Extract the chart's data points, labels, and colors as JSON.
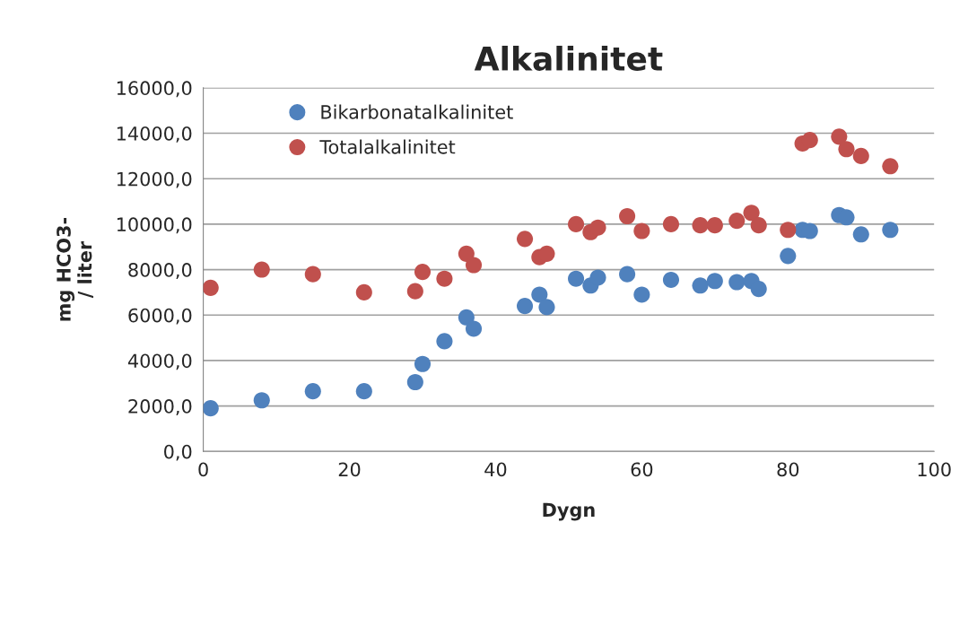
{
  "chart_data": {
    "type": "scatter",
    "title": "Alkalinitet",
    "xlabel": "Dygn",
    "ylabel": "mg HCO3-\n/ liter",
    "xlim": [
      0,
      100
    ],
    "xticks": [
      0,
      20,
      40,
      60,
      80,
      100
    ],
    "ylim": [
      0,
      16000
    ],
    "yticks": [
      {
        "value": 0,
        "label": "0,0"
      },
      {
        "value": 2000,
        "label": "2000,0"
      },
      {
        "value": 4000,
        "label": "4000,0"
      },
      {
        "value": 6000,
        "label": "6000,0"
      },
      {
        "value": 8000,
        "label": "8000,0"
      },
      {
        "value": 10000,
        "label": "10000,0"
      },
      {
        "value": 12000,
        "label": "12000,0"
      },
      {
        "value": 14000,
        "label": "14000,0"
      },
      {
        "value": 16000,
        "label": "16000,0"
      }
    ],
    "grid": "y",
    "legend": "top left",
    "marker": "circle",
    "series": [
      {
        "name": "Bikarbonatalkalinitet",
        "color": "#4f81bd",
        "x": [
          1,
          8,
          15,
          22,
          29,
          30,
          33,
          36,
          37,
          44,
          46,
          47,
          51,
          53,
          54,
          58,
          60,
          64,
          68,
          70,
          73,
          75,
          76,
          80,
          82,
          83,
          87,
          88,
          90,
          94
        ],
        "values": [
          1900,
          2250,
          2650,
          2650,
          3050,
          3850,
          4850,
          5900,
          5400,
          6400,
          6900,
          6350,
          7600,
          7300,
          7650,
          7800,
          6900,
          7550,
          7300,
          7500,
          7450,
          7500,
          7150,
          8600,
          9750,
          9700,
          10400,
          10300,
          9550,
          9750
        ]
      },
      {
        "name": "Totalalkalinitet",
        "color": "#c0504d",
        "x": [
          1,
          8,
          15,
          22,
          29,
          30,
          33,
          36,
          37,
          44,
          46,
          47,
          51,
          53,
          54,
          58,
          60,
          64,
          68,
          70,
          73,
          75,
          76,
          80,
          82,
          83,
          87,
          88,
          90,
          94
        ],
        "values": [
          7200,
          8000,
          7800,
          7000,
          7050,
          7900,
          7600,
          8700,
          8200,
          9350,
          8550,
          8700,
          10000,
          9650,
          9850,
          10350,
          9700,
          10000,
          9950,
          9950,
          10150,
          10500,
          9950,
          9750,
          13550,
          13700,
          13850,
          13300,
          13000,
          12550
        ]
      }
    ]
  }
}
